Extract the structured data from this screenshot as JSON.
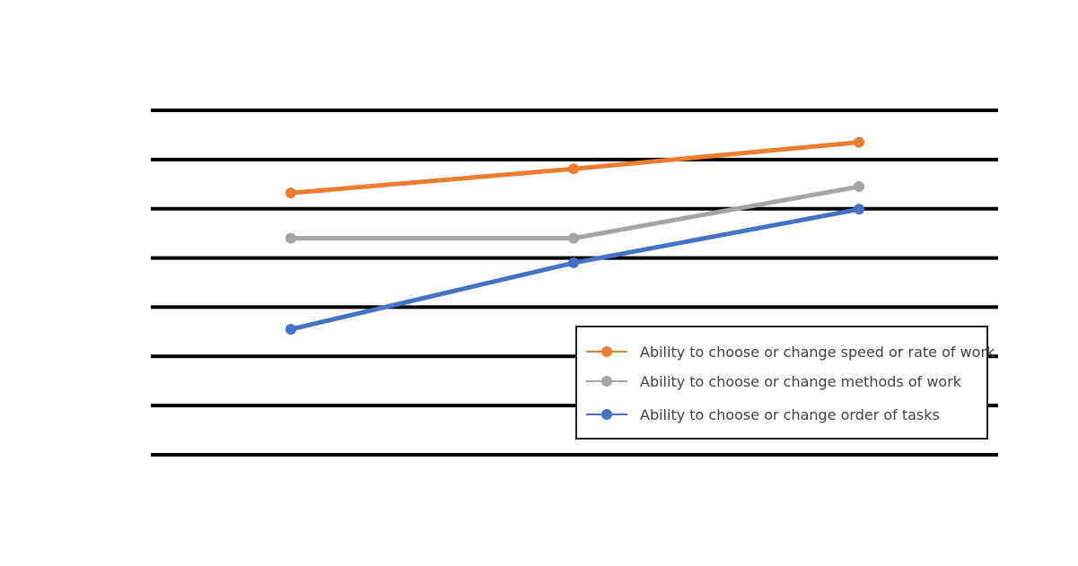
{
  "title": "",
  "footer_note": "",
  "chart_data": {
    "type": "line",
    "title": "",
    "xlabel": "",
    "ylabel": "",
    "categories": [
      "",
      "",
      ""
    ],
    "y_ticks": [
      "",
      "",
      "",
      "",
      "",
      "",
      "",
      ""
    ],
    "ylim": [
      0,
      7
    ],
    "grid": true,
    "legend_position": "bottom-right",
    "series": [
      {
        "name": "Ability to choose or change speed or rate of work",
        "color": "#ED7D31",
        "values": [
          5.32,
          5.81,
          6.35
        ]
      },
      {
        "name": "Ability to choose or change methods of work",
        "color": "#A5A5A5",
        "values": [
          4.4,
          4.4,
          5.45
        ]
      },
      {
        "name": "Ability to choose or change order of tasks",
        "color": "#4472C4",
        "values": [
          2.55,
          3.9,
          4.99
        ]
      }
    ]
  }
}
